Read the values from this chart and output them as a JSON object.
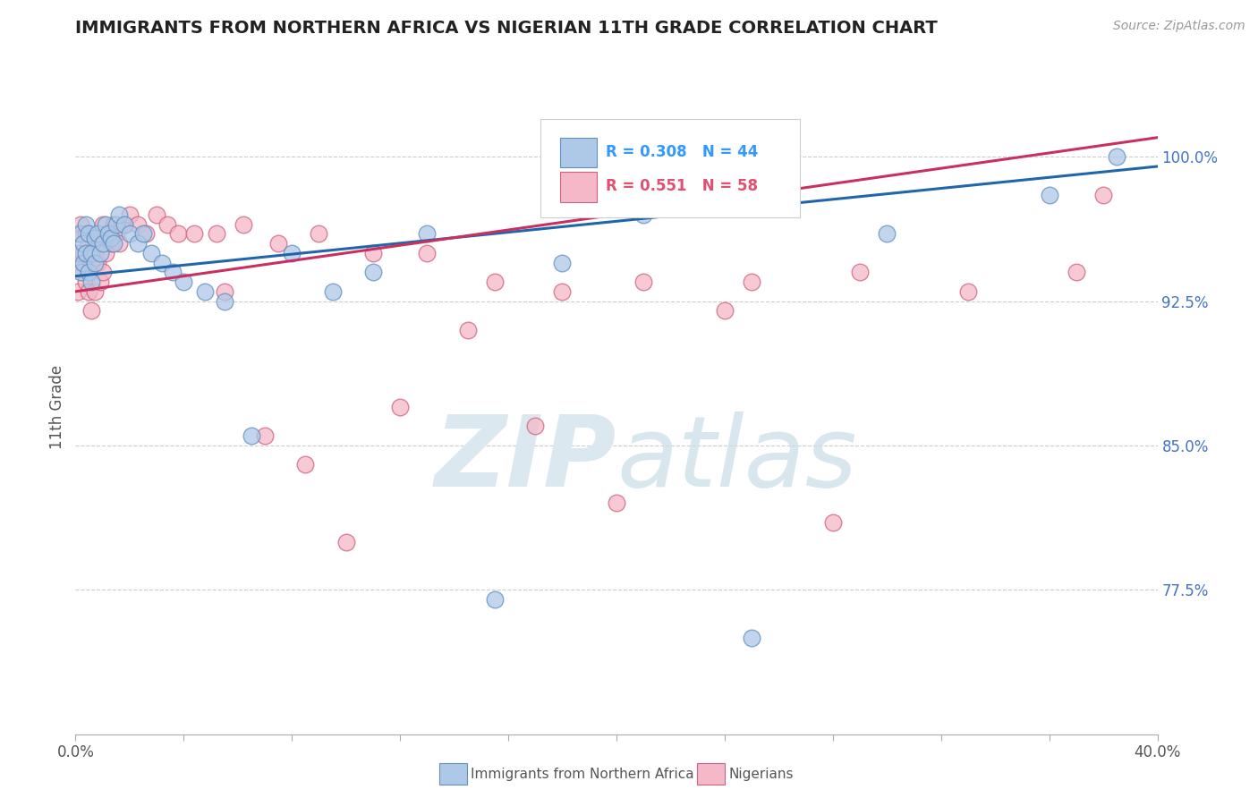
{
  "title": "IMMIGRANTS FROM NORTHERN AFRICA VS NIGERIAN 11TH GRADE CORRELATION CHART",
  "source": "Source: ZipAtlas.com",
  "xlabel_blue": "Immigrants from Northern Africa",
  "xlabel_pink": "Nigerians",
  "ylabel": "11th Grade",
  "xlim": [
    0.0,
    0.4
  ],
  "ylim": [
    0.7,
    1.04
  ],
  "ytick_right": [
    0.775,
    0.85,
    0.925,
    1.0
  ],
  "ytick_right_labels": [
    "77.5%",
    "85.0%",
    "92.5%",
    "100.0%"
  ],
  "blue_R": 0.308,
  "blue_N": 44,
  "pink_R": 0.551,
  "pink_N": 58,
  "blue_color": "#aec8e8",
  "pink_color": "#f4b8c8",
  "blue_edge_color": "#6090c0",
  "pink_edge_color": "#d06080",
  "blue_line_color": "#2166ac",
  "pink_line_color": "#c83060",
  "watermark_color": "#dce8f0",
  "blue_scatter_x": [
    0.001,
    0.002,
    0.002,
    0.003,
    0.003,
    0.004,
    0.004,
    0.005,
    0.005,
    0.006,
    0.006,
    0.007,
    0.007,
    0.008,
    0.009,
    0.01,
    0.011,
    0.012,
    0.013,
    0.014,
    0.015,
    0.016,
    0.018,
    0.02,
    0.023,
    0.025,
    0.028,
    0.032,
    0.036,
    0.04,
    0.048,
    0.055,
    0.065,
    0.08,
    0.095,
    0.11,
    0.13,
    0.155,
    0.18,
    0.21,
    0.25,
    0.3,
    0.36,
    0.385
  ],
  "blue_scatter_y": [
    0.95,
    0.94,
    0.96,
    0.955,
    0.945,
    0.965,
    0.95,
    0.94,
    0.96,
    0.935,
    0.95,
    0.958,
    0.945,
    0.96,
    0.95,
    0.955,
    0.965,
    0.96,
    0.958,
    0.955,
    0.965,
    0.97,
    0.965,
    0.96,
    0.955,
    0.96,
    0.95,
    0.945,
    0.94,
    0.935,
    0.93,
    0.925,
    0.855,
    0.95,
    0.93,
    0.94,
    0.96,
    0.77,
    0.945,
    0.97,
    0.75,
    0.96,
    0.98,
    1.0
  ],
  "pink_scatter_x": [
    0.001,
    0.001,
    0.002,
    0.002,
    0.003,
    0.003,
    0.004,
    0.004,
    0.005,
    0.005,
    0.006,
    0.006,
    0.007,
    0.007,
    0.008,
    0.008,
    0.009,
    0.009,
    0.01,
    0.01,
    0.011,
    0.012,
    0.013,
    0.014,
    0.015,
    0.016,
    0.018,
    0.02,
    0.023,
    0.026,
    0.03,
    0.034,
    0.038,
    0.044,
    0.052,
    0.062,
    0.075,
    0.09,
    0.11,
    0.13,
    0.155,
    0.18,
    0.21,
    0.25,
    0.29,
    0.33,
    0.37,
    0.055,
    0.07,
    0.085,
    0.1,
    0.12,
    0.145,
    0.17,
    0.2,
    0.24,
    0.28,
    0.38
  ],
  "pink_scatter_y": [
    0.93,
    0.96,
    0.945,
    0.965,
    0.94,
    0.95,
    0.935,
    0.96,
    0.93,
    0.955,
    0.92,
    0.945,
    0.93,
    0.95,
    0.945,
    0.955,
    0.935,
    0.958,
    0.94,
    0.965,
    0.95,
    0.96,
    0.955,
    0.965,
    0.96,
    0.955,
    0.965,
    0.97,
    0.965,
    0.96,
    0.97,
    0.965,
    0.96,
    0.96,
    0.96,
    0.965,
    0.955,
    0.96,
    0.95,
    0.95,
    0.935,
    0.93,
    0.935,
    0.935,
    0.94,
    0.93,
    0.94,
    0.93,
    0.855,
    0.84,
    0.8,
    0.87,
    0.91,
    0.86,
    0.82,
    0.92,
    0.81,
    0.98
  ],
  "blue_line_x": [
    0.0,
    0.4
  ],
  "blue_line_y": [
    0.938,
    0.995
  ],
  "pink_line_x": [
    0.0,
    0.4
  ],
  "pink_line_y": [
    0.93,
    1.01
  ]
}
